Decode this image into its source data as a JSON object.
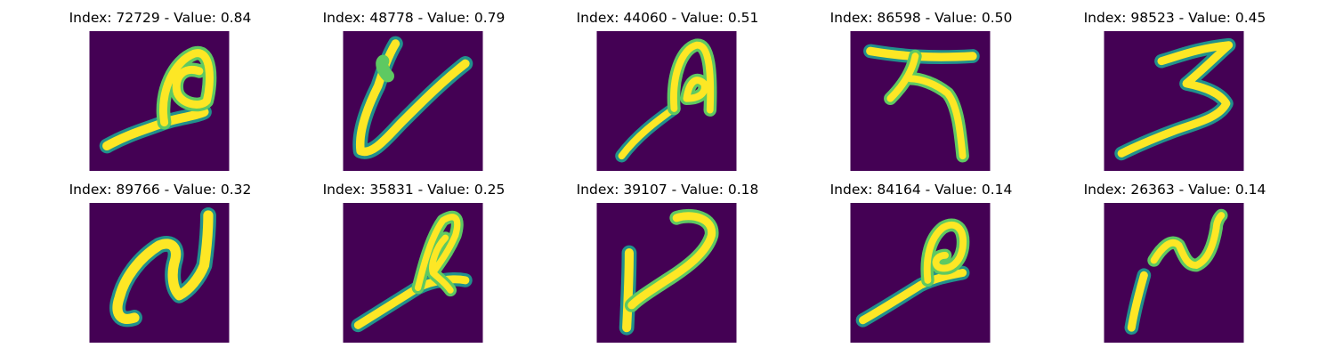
{
  "colors": {
    "background": "#440154",
    "low": "#3b528b",
    "mid": "#21918c",
    "high": "#5ec962",
    "peak": "#fde725"
  },
  "panels": [
    {
      "title": "Index: 72729 - Value: 0.84",
      "glyph": "loop-with-tail-a"
    },
    {
      "title": "Index: 48778 - Value: 0.79",
      "glyph": "v-shape"
    },
    {
      "title": "Index: 44060 - Value: 0.51",
      "glyph": "loop-with-tail-b"
    },
    {
      "title": "Index: 86598 - Value: 0.50",
      "glyph": "cross-shape"
    },
    {
      "title": "Index: 98523 - Value: 0.45",
      "glyph": "three-shape"
    },
    {
      "title": "Index: 89766 - Value: 0.32",
      "glyph": "n-shape-a"
    },
    {
      "title": "Index: 35831 - Value: 0.25",
      "glyph": "loop-with-tail-c"
    },
    {
      "title": "Index: 39107 - Value: 0.18",
      "glyph": "hook-shape"
    },
    {
      "title": "Index: 84164 - Value: 0.14",
      "glyph": "loop-with-tail-d"
    },
    {
      "title": "Index: 26363 - Value: 0.14",
      "glyph": "n-shape-b"
    }
  ]
}
